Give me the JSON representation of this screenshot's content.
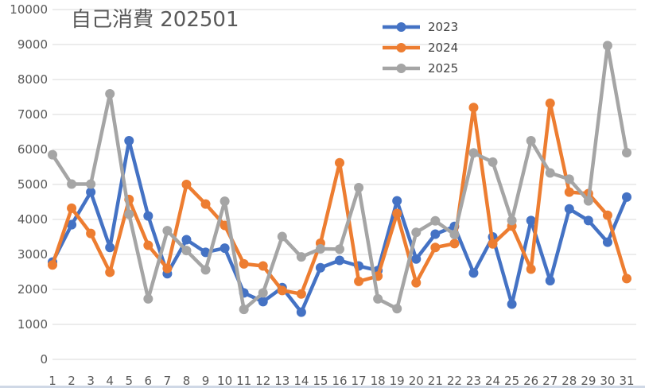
{
  "chart_data": {
    "type": "line",
    "title": "自己消費 202501",
    "xlabel": "",
    "ylabel": "",
    "ylim": [
      0,
      10000
    ],
    "yticks": [
      0,
      1000,
      2000,
      3000,
      4000,
      5000,
      6000,
      7000,
      8000,
      9000,
      10000
    ],
    "categories": [
      "1",
      "2",
      "3",
      "4",
      "5",
      "6",
      "7",
      "8",
      "9",
      "10",
      "11",
      "12",
      "13",
      "14",
      "15",
      "16",
      "17",
      "18",
      "19",
      "20",
      "21",
      "22",
      "23",
      "24",
      "25",
      "26",
      "27",
      "28",
      "29",
      "30",
      "31"
    ],
    "grid": true,
    "legend_position": "top-right",
    "series": [
      {
        "name": "2023",
        "color": "#4472C4",
        "values": [
          2780,
          3850,
          4780,
          3200,
          6250,
          4100,
          2450,
          3420,
          3060,
          3180,
          1900,
          1650,
          2050,
          1350,
          2620,
          2830,
          2670,
          2540,
          4530,
          2870,
          3580,
          3800,
          2470,
          3500,
          1580,
          3970,
          2250,
          4300,
          3970,
          3350,
          4640
        ]
      },
      {
        "name": "2024",
        "color": "#ED7D31",
        "values": [
          2700,
          4320,
          3600,
          2490,
          4570,
          3260,
          2600,
          5000,
          4440,
          3830,
          2730,
          2670,
          1970,
          1870,
          3320,
          5620,
          2230,
          2380,
          4170,
          2190,
          3200,
          3310,
          7200,
          3300,
          3810,
          2580,
          7320,
          4780,
          4740,
          4120,
          2310
        ]
      },
      {
        "name": "2025",
        "color": "#A5A5A5",
        "values": [
          5850,
          5010,
          5010,
          7590,
          4150,
          1730,
          3680,
          3110,
          2560,
          4520,
          1430,
          1900,
          3510,
          2930,
          3160,
          3150,
          4910,
          1730,
          1450,
          3630,
          3960,
          3570,
          5900,
          5640,
          3970,
          6250,
          5330,
          5150,
          4530,
          8970,
          5910
        ]
      }
    ]
  }
}
